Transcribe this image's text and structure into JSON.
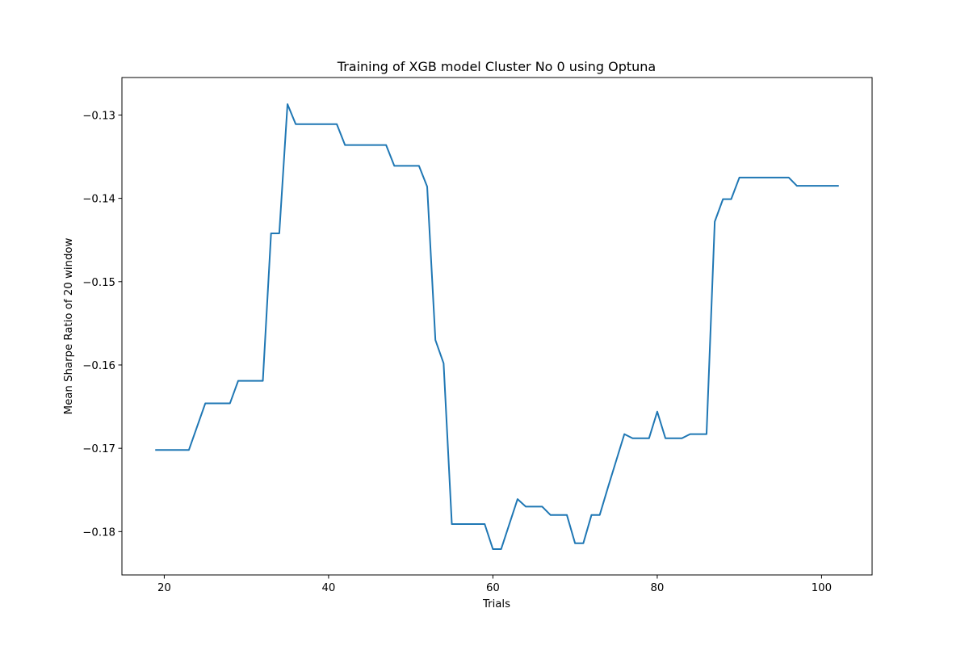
{
  "chart_data": {
    "type": "line",
    "title": "Training of XGB model Cluster No 0 using Optuna",
    "xlabel": "Trials",
    "ylabel": "Mean Sharpe Ratio of 20 window",
    "xlim": [
      14.85,
      106.15
    ],
    "ylim": [
      -0.1852,
      -0.1255
    ],
    "xticks": [
      20,
      40,
      60,
      80,
      100
    ],
    "xtick_labels": [
      "20",
      "40",
      "60",
      "80",
      "100"
    ],
    "yticks": [
      -0.18,
      -0.17,
      -0.16,
      -0.15,
      -0.14,
      -0.13
    ],
    "ytick_labels": [
      "−0.18",
      "−0.17",
      "−0.16",
      "−0.15",
      "−0.14",
      "−0.13"
    ],
    "grid": false,
    "series": [
      {
        "color": "#1f77b4",
        "x": [
          19,
          20,
          21,
          22,
          23,
          24,
          25,
          26,
          27,
          28,
          29,
          30,
          31,
          32,
          33,
          34,
          35,
          36,
          37,
          38,
          39,
          40,
          41,
          42,
          43,
          44,
          45,
          46,
          47,
          48,
          49,
          50,
          51,
          52,
          53,
          54,
          55,
          56,
          57,
          58,
          59,
          60,
          61,
          62,
          63,
          64,
          65,
          66,
          67,
          68,
          69,
          70,
          71,
          72,
          73,
          74,
          75,
          76,
          77,
          78,
          79,
          80,
          81,
          82,
          83,
          84,
          85,
          86,
          87,
          88,
          89,
          90,
          91,
          92,
          93,
          94,
          95,
          96,
          97,
          98,
          99,
          100,
          101,
          102
        ],
        "y": [
          -0.1702,
          -0.1702,
          -0.1702,
          -0.1702,
          -0.1702,
          -0.1674,
          -0.1646,
          -0.1646,
          -0.1646,
          -0.1646,
          -0.1619,
          -0.1619,
          -0.1619,
          -0.1619,
          -0.1442,
          -0.1442,
          -0.1287,
          -0.1311,
          -0.1311,
          -0.1311,
          -0.1311,
          -0.1311,
          -0.1311,
          -0.1336,
          -0.1336,
          -0.1336,
          -0.1336,
          -0.1336,
          -0.1336,
          -0.1361,
          -0.1361,
          -0.1361,
          -0.1361,
          -0.1386,
          -0.157,
          -0.1598,
          -0.1791,
          -0.1791,
          -0.1791,
          -0.1791,
          -0.1791,
          -0.1821,
          -0.1821,
          -0.1791,
          -0.1761,
          -0.177,
          -0.177,
          -0.177,
          -0.178,
          -0.178,
          -0.178,
          -0.1814,
          -0.1814,
          -0.178,
          -0.178,
          -0.1747,
          -0.1715,
          -0.1683,
          -0.1688,
          -0.1688,
          -0.1688,
          -0.1656,
          -0.1688,
          -0.1688,
          -0.1688,
          -0.1683,
          -0.1683,
          -0.1683,
          -0.1428,
          -0.1401,
          -0.1401,
          -0.1375,
          -0.1375,
          -0.1375,
          -0.1375,
          -0.1375,
          -0.1375,
          -0.1375,
          -0.1385,
          -0.1385,
          -0.1385,
          -0.1385,
          -0.1385,
          -0.1385
        ]
      }
    ]
  }
}
